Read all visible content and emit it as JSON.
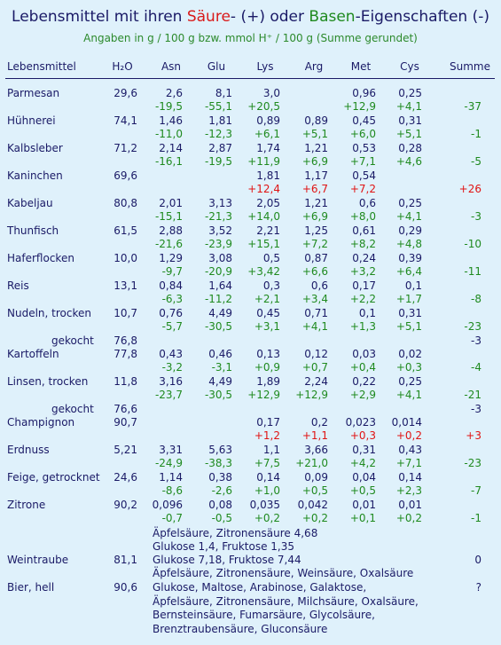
{
  "title": {
    "prefix": "Lebensmittel mit ihren ",
    "acid": "Säure",
    "mid": "- (+) oder ",
    "base": "Basen",
    "suffix": "-Eigenschaften (-)"
  },
  "subtitle": "Angaben in g / 100 g bzw. mmol H⁺ / 100 g (Summe gerundet)",
  "columns": [
    "Lebensmittel",
    "H₂O",
    "Asn",
    "Glu",
    "Lys",
    "Arg",
    "Met",
    "Cys",
    "Summe"
  ],
  "rows": [
    {
      "name": "Parmesan",
      "h2o": "29,6",
      "vals": [
        "2,6",
        "8,1",
        "3,0",
        "",
        "0,96",
        "0,25"
      ],
      "mmol": [
        "-19,5",
        "-55,1",
        "+20,5",
        "",
        "+12,9",
        "+4,1"
      ],
      "sum": "-37"
    },
    {
      "name": "Hühnerei",
      "h2o": "74,1",
      "vals": [
        "1,46",
        "1,81",
        "0,89",
        "0,89",
        "0,45",
        "0,31"
      ],
      "mmol": [
        "-11,0",
        "-12,3",
        "+6,1",
        "+5,1",
        "+6,0",
        "+5,1"
      ],
      "sum": "-1"
    },
    {
      "name": "Kalbsleber",
      "h2o": "71,2",
      "vals": [
        "2,14",
        "2,87",
        "1,74",
        "1,21",
        "0,53",
        "0,28"
      ],
      "mmol": [
        "-16,1",
        "-19,5",
        "+11,9",
        "+6,9",
        "+7,1",
        "+4,6"
      ],
      "sum": "-5"
    },
    {
      "name": "Kaninchen",
      "h2o": "69,6",
      "vals": [
        "",
        "",
        "1,81",
        "1,17",
        "0,54",
        ""
      ],
      "mmol": [
        "",
        "",
        "+12,4",
        "+6,7",
        "+7,2",
        ""
      ],
      "sum": "+26",
      "red": true
    },
    {
      "name": "Kabeljau",
      "h2o": "80,8",
      "vals": [
        "2,01",
        "3,13",
        "2,05",
        "1,21",
        "0,6",
        "0,25"
      ],
      "mmol": [
        "-15,1",
        "-21,3",
        "+14,0",
        "+6,9",
        "+8,0",
        "+4,1"
      ],
      "sum": "-3"
    },
    {
      "name": "Thunfisch",
      "h2o": "61,5",
      "vals": [
        "2,88",
        "3,52",
        "2,21",
        "1,25",
        "0,61",
        "0,29"
      ],
      "mmol": [
        "-21,6",
        "-23,9",
        "+15,1",
        "+7,2",
        "+8,2",
        "+4,8"
      ],
      "sum": "-10"
    },
    {
      "name": "Haferflocken",
      "h2o": "10,0",
      "vals": [
        "1,29",
        "3,08",
        "0,5",
        "0,87",
        "0,24",
        "0,39"
      ],
      "mmol": [
        "-9,7",
        "-20,9",
        "+3,42",
        "+6,6",
        "+3,2",
        "+6,4"
      ],
      "sum": "-11"
    },
    {
      "name": "Reis",
      "h2o": "13,1",
      "vals": [
        "0,84",
        "1,64",
        "0,3",
        "0,6",
        "0,17",
        "0,1"
      ],
      "mmol": [
        "-6,3",
        "-11,2",
        "+2,1",
        "+3,4",
        "+2,2",
        "+1,7"
      ],
      "sum": "-8"
    },
    {
      "name": "Nudeln, trocken",
      "h2o": "10,7",
      "vals": [
        "0,76",
        "4,49",
        "0,45",
        "0,71",
        "0,1",
        "0,31"
      ],
      "mmol": [
        "-5,7",
        "-30,5",
        "+3,1",
        "+4,1",
        "+1,3",
        "+5,1"
      ],
      "sum": "-23"
    },
    {
      "name": "Kartoffeln",
      "h2o": "77,8",
      "vals": [
        "0,43",
        "0,46",
        "0,13",
        "0,12",
        "0,03",
        "0,02"
      ],
      "mmol": [
        "-3,2",
        "-3,1",
        "+0,9",
        "+0,7",
        "+0,4",
        "+0,3"
      ],
      "sum": "-4"
    },
    {
      "name": "Linsen, trocken",
      "h2o": "11,8",
      "vals": [
        "3,16",
        "4,49",
        "1,89",
        "2,24",
        "0,22",
        "0,25"
      ],
      "mmol": [
        "-23,7",
        "-30,5",
        "+12,9",
        "+12,9",
        "+2,9",
        "+4,1"
      ],
      "sum": "-21"
    },
    {
      "name": "Champignon",
      "h2o": "90,7",
      "vals": [
        "",
        "",
        "0,17",
        "0,2",
        "0,023",
        "0,014"
      ],
      "mmol": [
        "",
        "",
        "+1,2",
        "+1,1",
        "+0,3",
        "+0,2"
      ],
      "sum": "+3",
      "red": true
    },
    {
      "name": "Erdnuss",
      "h2o": "5,21",
      "vals": [
        "3,31",
        "5,63",
        "1,1",
        "3,66",
        "0,31",
        "0,43"
      ],
      "mmol": [
        "-24,9",
        "-38,3",
        "+7,5",
        "+21,0",
        "+4,2",
        "+7,1"
      ],
      "sum": "-23"
    },
    {
      "name": "Feige, getrocknet",
      "h2o": "24,6",
      "vals": [
        "1,14",
        "0,38",
        "0,14",
        "0,09",
        "0,04",
        "0,14"
      ],
      "mmol": [
        "-8,6",
        "-2,6",
        "+1,0",
        "+0,5",
        "+0,5",
        "+2,3"
      ],
      "sum": "-7"
    },
    {
      "name": "Zitrone",
      "h2o": "90,2",
      "vals": [
        "0,096",
        "0,08",
        "0,035",
        "0,042",
        "0,01",
        "0,01"
      ],
      "mmol": [
        "-0,7",
        "-0,5",
        "+0,2",
        "+0,2",
        "+0,1",
        "+0,2"
      ],
      "sum": "-1"
    }
  ],
  "gekocht": [
    {
      "label": "gekocht",
      "h2o": "76,8",
      "sum": "-3"
    },
    {
      "label": "gekocht",
      "h2o": "76,6",
      "sum": "-3"
    }
  ],
  "zitrone_note1": "Äpfelsäure, Zitronensäure 4,68",
  "zitrone_note2": "Glukose 1,4, Fruktose 1,35",
  "weintraube": {
    "name": "Weintraube",
    "h2o": "81,1",
    "line1": "Glukose 7,18, Fruktose 7,44",
    "line2": "Äpfelsäure, Zitronensäure, Weinsäure, Oxalsäure",
    "sum": "0"
  },
  "bier": {
    "name": "Bier, hell",
    "h2o": "90,6",
    "lines": [
      "Glukose, Maltose, Arabinose, Galaktose,",
      "Äpfelsäure, Zitronensäure, Milchsäure, Oxalsäure,",
      "Bernsteinsäure, Fumarsäure, Glycolsäure,",
      "Brenztraubensäure, Gluconsäure"
    ],
    "sum": "?"
  }
}
